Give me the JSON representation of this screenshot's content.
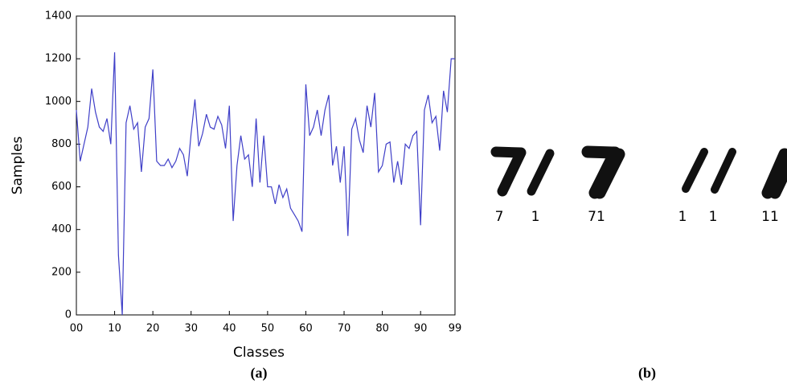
{
  "chart_data": {
    "type": "line",
    "xlabel": "Classes",
    "ylabel": "Samples",
    "color": "#3f3fc8",
    "x": [
      0,
      1,
      2,
      3,
      4,
      5,
      6,
      7,
      8,
      9,
      10,
      11,
      12,
      13,
      14,
      15,
      16,
      17,
      18,
      19,
      20,
      21,
      22,
      23,
      24,
      25,
      26,
      27,
      28,
      29,
      30,
      31,
      32,
      33,
      34,
      35,
      36,
      37,
      38,
      39,
      40,
      41,
      42,
      43,
      44,
      45,
      46,
      47,
      48,
      49,
      50,
      51,
      52,
      53,
      54,
      55,
      56,
      57,
      58,
      59,
      60,
      61,
      62,
      63,
      64,
      65,
      66,
      67,
      68,
      69,
      70,
      71,
      72,
      73,
      74,
      75,
      76,
      77,
      78,
      79,
      80,
      81,
      82,
      83,
      84,
      85,
      86,
      87,
      88,
      89,
      90,
      91,
      92,
      93,
      94,
      95,
      96,
      97,
      98,
      99
    ],
    "values": [
      960,
      720,
      800,
      880,
      1060,
      950,
      880,
      860,
      920,
      800,
      1230,
      280,
      0,
      900,
      980,
      870,
      900,
      670,
      880,
      920,
      1150,
      720,
      700,
      700,
      730,
      690,
      720,
      780,
      750,
      650,
      850,
      1010,
      790,
      850,
      940,
      880,
      870,
      930,
      890,
      780,
      980,
      440,
      700,
      840,
      730,
      750,
      600,
      920,
      620,
      840,
      600,
      600,
      520,
      610,
      550,
      590,
      500,
      470,
      440,
      390,
      1080,
      840,
      880,
      960,
      840,
      960,
      1030,
      700,
      790,
      620,
      790,
      370,
      870,
      920,
      820,
      760,
      980,
      880,
      1040,
      670,
      700,
      800,
      810,
      620,
      720,
      610,
      800,
      780,
      840,
      860,
      420,
      960,
      1030,
      900,
      930,
      770,
      1050,
      950,
      1200,
      1200
    ],
    "xlim": [
      0,
      99
    ],
    "xticks": [
      {
        "value": 0,
        "label": "00"
      },
      10,
      20,
      30,
      40,
      50,
      60,
      70,
      80,
      90,
      99
    ],
    "ylim": [
      0,
      1400
    ],
    "yticks": [
      0,
      200,
      400,
      600,
      800,
      1000,
      1200,
      1400
    ]
  },
  "figure": {
    "panel_labels": [
      "(a)",
      "(b)"
    ],
    "digit_labels": [
      "7",
      "1",
      "71",
      "1",
      "1",
      "11"
    ]
  }
}
